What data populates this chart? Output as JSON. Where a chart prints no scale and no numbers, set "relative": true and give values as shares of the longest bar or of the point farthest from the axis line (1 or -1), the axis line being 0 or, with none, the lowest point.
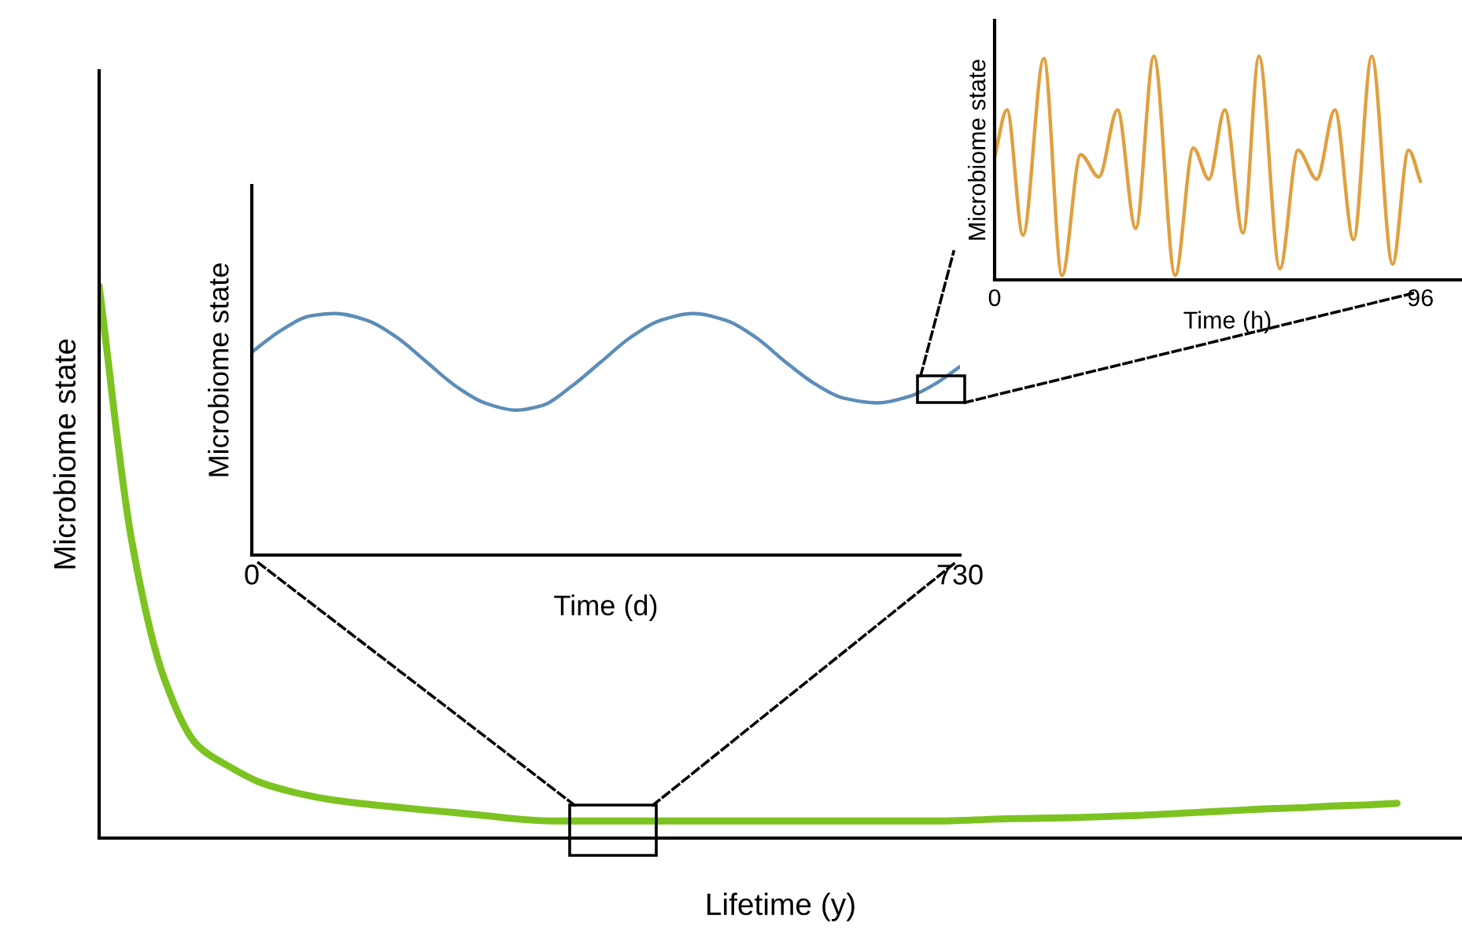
{
  "chart_data": [
    {
      "type": "line",
      "relative": true,
      "tick_labels": false,
      "xlabel": "Lifetime (y)",
      "ylabel": "Microbiome state",
      "categories": [
        null,
        null,
        null,
        null,
        null,
        null,
        null,
        null,
        null,
        null,
        null,
        null,
        null,
        null,
        null,
        null,
        null,
        null,
        null,
        null,
        null,
        null,
        null,
        null,
        null,
        null,
        null,
        null,
        null,
        null,
        null,
        null,
        null,
        null,
        null,
        null,
        null,
        null,
        null,
        null,
        null,
        null,
        null
      ],
      "series": [
        {
          "color": "#7cc322",
          "values": [
            1,
            0.54,
            0.29,
            0.17,
            0.13,
            0.1,
            0.083,
            0.071,
            0.063,
            0.057,
            0.051,
            0.046,
            0.04,
            0.034,
            0.031,
            0.031,
            0.031,
            0.031,
            0.031,
            0.031,
            0.031,
            0.031,
            0.031,
            0.031,
            0.031,
            0.031,
            0.031,
            0.033,
            0.035,
            0.036,
            0.037,
            0.039,
            0.041,
            0.044,
            0.047,
            0.05,
            0.053,
            0.055,
            0.058,
            0.06,
            0.063,
            null,
            null
          ]
        }
      ]
    },
    {
      "type": "line",
      "relative": true,
      "tick_labels": "x",
      "xlabel": "Time (d)",
      "ylabel": "Microbiome state",
      "xlim": [
        0,
        730
      ],
      "xticks": [
        0,
        730
      ],
      "series": [
        {
          "color": "#5b8db8",
          "x": [
            0,
            30,
            60,
            86,
            120,
            150,
            180,
            210,
            240,
            272,
            300,
            330,
            360,
            390,
            420,
            455,
            490,
            520,
            550,
            580,
            610,
            645,
            680,
            705,
            730
          ],
          "values": [
            0.84,
            0.93,
            0.99,
            1,
            0.97,
            0.9,
            0.8,
            0.7,
            0.63,
            0.6,
            0.62,
            0.7,
            0.8,
            0.9,
            0.97,
            1,
            0.97,
            0.9,
            0.8,
            0.71,
            0.65,
            0.63,
            0.66,
            0.71,
            0.78
          ]
        }
      ]
    },
    {
      "type": "line",
      "relative": true,
      "tick_labels": "x",
      "xlabel": "Time (h)",
      "ylabel": "Microbiome state",
      "xlim": [
        0,
        105
      ],
      "xticks": [
        0,
        96
      ],
      "series": [
        {
          "color": "#e0a040",
          "x": [
            0,
            2.8,
            6.4,
            11.1,
            15.2,
            19.4,
            23.5,
            27.7,
            31.8,
            35.9,
            40.7,
            44.8,
            48.3,
            51.9,
            56,
            59.6,
            64.3,
            68.4,
            72.6,
            76.7,
            80.9,
            85,
            89.7,
            93.3,
            96
          ],
          "values": [
            0.55,
            0.76,
            0.2,
            0.99,
            0.02,
            0.56,
            0.46,
            0.76,
            0.23,
            1,
            0.02,
            0.59,
            0.45,
            0.76,
            0.21,
            1,
            0.05,
            0.58,
            0.45,
            0.76,
            0.18,
            1,
            0.07,
            0.58,
            0.44
          ]
        }
      ]
    }
  ]
}
